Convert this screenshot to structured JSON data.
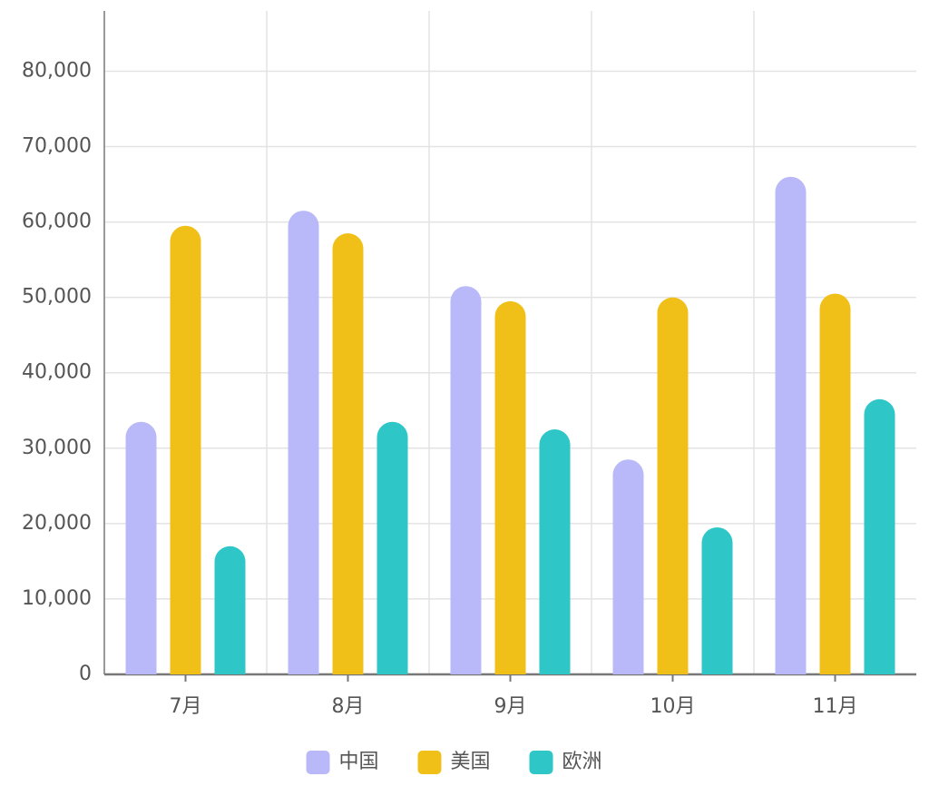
{
  "chart_data": {
    "type": "bar",
    "categories": [
      "7月",
      "8月",
      "9月",
      "10月",
      "11月"
    ],
    "series": [
      {
        "name": "中国",
        "color": "#b9b8f8",
        "values": [
          33500,
          61500,
          51500,
          28500,
          66000
        ]
      },
      {
        "name": "美国",
        "color": "#f0c018",
        "values": [
          59500,
          58500,
          49500,
          50000,
          50500
        ]
      },
      {
        "name": "欧洲",
        "color": "#2ec6c6",
        "values": [
          17000,
          33500,
          32500,
          19500,
          36500
        ]
      }
    ],
    "ylim": [
      0,
      88000
    ],
    "yticks": [
      0,
      {
        "value": 10000,
        "label": "10,000"
      },
      {
        "value": 20000,
        "label": "20,000"
      },
      {
        "value": 30000,
        "label": "30,000"
      },
      {
        "value": 40000,
        "label": "40,000"
      },
      {
        "value": 50000,
        "label": "50,000"
      },
      {
        "value": 60000,
        "label": "60,000"
      },
      {
        "value": 70000,
        "label": "70,000"
      },
      {
        "value": 80000,
        "label": "80,000"
      }
    ],
    "grid": true,
    "legend": "bottom"
  }
}
